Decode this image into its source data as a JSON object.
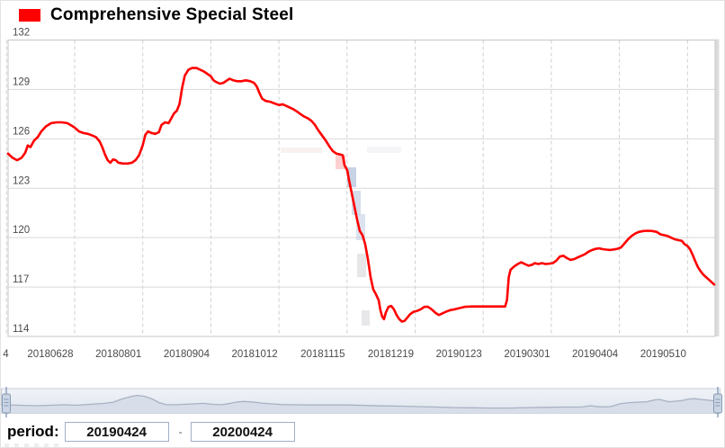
{
  "chart_data": {
    "type": "line",
    "title": "Comprehensive Special Steel",
    "legend_position": "top-left",
    "grid": {
      "horizontal": "solid",
      "vertical": "dashed"
    },
    "ylim": [
      114,
      132
    ],
    "yticks": [
      132,
      129,
      126,
      123,
      120,
      117,
      114
    ],
    "xtick_labels": [
      "4",
      "20180628",
      "20180801",
      "20180904",
      "20181012",
      "20181115",
      "20181219",
      "20190123",
      "20190301",
      "20190404",
      "20190510"
    ],
    "x_scale": 788,
    "series": [
      {
        "name": "Comprehensive Special Steel",
        "color": "#ff0000",
        "points": [
          [
            0,
            125.1
          ],
          [
            5,
            124.85
          ],
          [
            10,
            124.7
          ],
          [
            15,
            124.85
          ],
          [
            19,
            125.15
          ],
          [
            22,
            125.6
          ],
          [
            25,
            125.5
          ],
          [
            29,
            125.9
          ],
          [
            33,
            126.1
          ],
          [
            37,
            126.45
          ],
          [
            42,
            126.75
          ],
          [
            48,
            126.95
          ],
          [
            54,
            127.0
          ],
          [
            60,
            127.0
          ],
          [
            66,
            126.95
          ],
          [
            71,
            126.8
          ],
          [
            75,
            126.65
          ],
          [
            79,
            126.45
          ],
          [
            84,
            126.35
          ],
          [
            89,
            126.3
          ],
          [
            94,
            126.2
          ],
          [
            98,
            126.1
          ],
          [
            102,
            125.85
          ],
          [
            105,
            125.5
          ],
          [
            108,
            125.05
          ],
          [
            111,
            124.7
          ],
          [
            114,
            124.55
          ],
          [
            117,
            124.75
          ],
          [
            120,
            124.7
          ],
          [
            123,
            124.55
          ],
          [
            128,
            124.5
          ],
          [
            133,
            124.5
          ],
          [
            138,
            124.55
          ],
          [
            142,
            124.7
          ],
          [
            146,
            125.0
          ],
          [
            150,
            125.6
          ],
          [
            153,
            126.25
          ],
          [
            156,
            126.45
          ],
          [
            160,
            126.35
          ],
          [
            164,
            126.3
          ],
          [
            168,
            126.4
          ],
          [
            171,
            126.85
          ],
          [
            175,
            127.0
          ],
          [
            179,
            126.95
          ],
          [
            182,
            127.25
          ],
          [
            185,
            127.55
          ],
          [
            188,
            127.7
          ],
          [
            191,
            128.1
          ],
          [
            194,
            129.1
          ],
          [
            197,
            129.85
          ],
          [
            201,
            130.2
          ],
          [
            205,
            130.3
          ],
          [
            210,
            130.3
          ],
          [
            214,
            130.2
          ],
          [
            218,
            130.1
          ],
          [
            222,
            129.95
          ],
          [
            226,
            129.8
          ],
          [
            229,
            129.55
          ],
          [
            232,
            129.45
          ],
          [
            236,
            129.35
          ],
          [
            240,
            129.4
          ],
          [
            244,
            129.55
          ],
          [
            247,
            129.65
          ],
          [
            251,
            129.55
          ],
          [
            255,
            129.5
          ],
          [
            260,
            129.5
          ],
          [
            265,
            129.55
          ],
          [
            270,
            129.5
          ],
          [
            274,
            129.4
          ],
          [
            277,
            129.2
          ],
          [
            280,
            128.8
          ],
          [
            283,
            128.45
          ],
          [
            287,
            128.3
          ],
          [
            292,
            128.25
          ],
          [
            297,
            128.15
          ],
          [
            302,
            128.05
          ],
          [
            306,
            128.1
          ],
          [
            310,
            128.0
          ],
          [
            314,
            127.9
          ],
          [
            318,
            127.8
          ],
          [
            322,
            127.65
          ],
          [
            326,
            127.5
          ],
          [
            330,
            127.35
          ],
          [
            334,
            127.25
          ],
          [
            338,
            127.1
          ],
          [
            342,
            126.85
          ],
          [
            346,
            126.5
          ],
          [
            350,
            126.2
          ],
          [
            354,
            125.9
          ],
          [
            358,
            125.55
          ],
          [
            362,
            125.25
          ],
          [
            366,
            125.1
          ],
          [
            370,
            125.05
          ],
          [
            373,
            125.0
          ],
          [
            375,
            124.4
          ],
          [
            378,
            124.1
          ],
          [
            380,
            123.5
          ],
          [
            383,
            122.7
          ],
          [
            386,
            121.9
          ],
          [
            389,
            121.1
          ],
          [
            392,
            120.4
          ],
          [
            395,
            120.15
          ],
          [
            398,
            119.6
          ],
          [
            401,
            118.7
          ],
          [
            404,
            117.6
          ],
          [
            407,
            116.85
          ],
          [
            410,
            116.55
          ],
          [
            413,
            116.2
          ],
          [
            415,
            115.6
          ],
          [
            417,
            115.2
          ],
          [
            419,
            115.05
          ],
          [
            421,
            115.45
          ],
          [
            424,
            115.8
          ],
          [
            427,
            115.85
          ],
          [
            430,
            115.65
          ],
          [
            433,
            115.3
          ],
          [
            436,
            115.05
          ],
          [
            439,
            114.9
          ],
          [
            442,
            114.95
          ],
          [
            445,
            115.15
          ],
          [
            448,
            115.35
          ],
          [
            452,
            115.5
          ],
          [
            456,
            115.55
          ],
          [
            460,
            115.65
          ],
          [
            464,
            115.8
          ],
          [
            468,
            115.8
          ],
          [
            472,
            115.65
          ],
          [
            476,
            115.45
          ],
          [
            480,
            115.3
          ],
          [
            484,
            115.4
          ],
          [
            488,
            115.5
          ],
          [
            493,
            115.6
          ],
          [
            498,
            115.65
          ],
          [
            503,
            115.72
          ],
          [
            509,
            115.8
          ],
          [
            517,
            115.82
          ],
          [
            527,
            115.82
          ],
          [
            537,
            115.82
          ],
          [
            547,
            115.82
          ],
          [
            554,
            115.82
          ],
          [
            556,
            116.2
          ],
          [
            558,
            117.6
          ],
          [
            560,
            118.05
          ],
          [
            564,
            118.25
          ],
          [
            568,
            118.4
          ],
          [
            572,
            118.5
          ],
          [
            576,
            118.4
          ],
          [
            580,
            118.3
          ],
          [
            584,
            118.35
          ],
          [
            587,
            118.45
          ],
          [
            591,
            118.4
          ],
          [
            595,
            118.45
          ],
          [
            599,
            118.4
          ],
          [
            603,
            118.42
          ],
          [
            607,
            118.45
          ],
          [
            611,
            118.6
          ],
          [
            615,
            118.85
          ],
          [
            619,
            118.9
          ],
          [
            623,
            118.75
          ],
          [
            627,
            118.65
          ],
          [
            631,
            118.7
          ],
          [
            635,
            118.8
          ],
          [
            639,
            118.9
          ],
          [
            643,
            119.0
          ],
          [
            647,
            119.15
          ],
          [
            651,
            119.25
          ],
          [
            655,
            119.32
          ],
          [
            659,
            119.35
          ],
          [
            663,
            119.3
          ],
          [
            667,
            119.27
          ],
          [
            671,
            119.25
          ],
          [
            675,
            119.28
          ],
          [
            679,
            119.32
          ],
          [
            683,
            119.4
          ],
          [
            687,
            119.65
          ],
          [
            691,
            119.9
          ],
          [
            695,
            120.1
          ],
          [
            699,
            120.25
          ],
          [
            703,
            120.35
          ],
          [
            708,
            120.4
          ],
          [
            713,
            120.42
          ],
          [
            718,
            120.4
          ],
          [
            723,
            120.35
          ],
          [
            727,
            120.2
          ],
          [
            731,
            120.15
          ],
          [
            735,
            120.1
          ],
          [
            739,
            120.0
          ],
          [
            743,
            119.9
          ],
          [
            747,
            119.85
          ],
          [
            751,
            119.8
          ],
          [
            754,
            119.6
          ],
          [
            757,
            119.5
          ],
          [
            760,
            119.3
          ],
          [
            763,
            118.95
          ],
          [
            766,
            118.55
          ],
          [
            769,
            118.2
          ],
          [
            772,
            117.95
          ],
          [
            775,
            117.75
          ],
          [
            778,
            117.6
          ],
          [
            781,
            117.45
          ],
          [
            784,
            117.3
          ],
          [
            787,
            117.15
          ]
        ]
      }
    ],
    "navigator": {
      "x_scale": 800,
      "points": [
        [
          0,
          0.69
        ],
        [
          20,
          0.71
        ],
        [
          40,
          0.73
        ],
        [
          55,
          0.71
        ],
        [
          70,
          0.69
        ],
        [
          85,
          0.71
        ],
        [
          100,
          0.67
        ],
        [
          115,
          0.63
        ],
        [
          125,
          0.58
        ],
        [
          135,
          0.44
        ],
        [
          145,
          0.33
        ],
        [
          152,
          0.29
        ],
        [
          160,
          0.33
        ],
        [
          168,
          0.44
        ],
        [
          176,
          0.6
        ],
        [
          184,
          0.69
        ],
        [
          195,
          0.69
        ],
        [
          205,
          0.67
        ],
        [
          215,
          0.65
        ],
        [
          225,
          0.63
        ],
        [
          235,
          0.67
        ],
        [
          245,
          0.69
        ],
        [
          255,
          0.63
        ],
        [
          263,
          0.57
        ],
        [
          270,
          0.55
        ],
        [
          280,
          0.57
        ],
        [
          290,
          0.62
        ],
        [
          300,
          0.65
        ],
        [
          312,
          0.68
        ],
        [
          325,
          0.69
        ],
        [
          345,
          0.7
        ],
        [
          365,
          0.7
        ],
        [
          385,
          0.7
        ],
        [
          405,
          0.72
        ],
        [
          425,
          0.74
        ],
        [
          445,
          0.75
        ],
        [
          465,
          0.77
        ],
        [
          485,
          0.79
        ],
        [
          505,
          0.81
        ],
        [
          525,
          0.82
        ],
        [
          545,
          0.83
        ],
        [
          565,
          0.83
        ],
        [
          585,
          0.81
        ],
        [
          605,
          0.8
        ],
        [
          625,
          0.79
        ],
        [
          645,
          0.79
        ],
        [
          652,
          0.75
        ],
        [
          656,
          0.73
        ],
        [
          661,
          0.76
        ],
        [
          668,
          0.78
        ],
        [
          678,
          0.77
        ],
        [
          688,
          0.65
        ],
        [
          698,
          0.6
        ],
        [
          708,
          0.58
        ],
        [
          718,
          0.56
        ],
        [
          726,
          0.49
        ],
        [
          732,
          0.46
        ],
        [
          737,
          0.51
        ],
        [
          743,
          0.56
        ],
        [
          750,
          0.54
        ],
        [
          757,
          0.51
        ],
        [
          764,
          0.45
        ],
        [
          771,
          0.43
        ],
        [
          778,
          0.46
        ],
        [
          785,
          0.49
        ],
        [
          792,
          0.52
        ],
        [
          800,
          0.54
        ]
      ]
    }
  },
  "period": {
    "label": "period:",
    "start": "20190424",
    "separator": "-",
    "end": "20200424"
  }
}
